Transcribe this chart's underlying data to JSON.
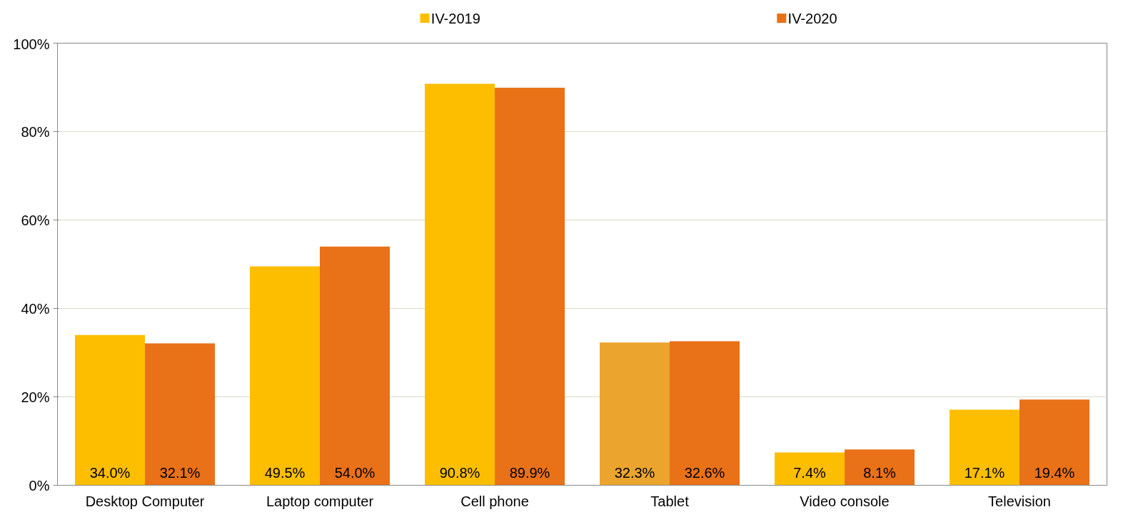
{
  "chart_data": {
    "type": "bar",
    "categories": [
      "Desktop Computer",
      "Laptop computer",
      "Cell phone",
      "Tablet",
      "Video console",
      "Television"
    ],
    "series": [
      {
        "name": "IV-2019",
        "color": "#fdbe00",
        "colors": [
          "#fdbe00",
          "#fdbe00",
          "#fdbe00",
          "#eba52e",
          "#fdbe00",
          "#fdbe00"
        ],
        "values": [
          34.0,
          49.5,
          90.8,
          32.3,
          7.4,
          17.1
        ],
        "value_labels": [
          "34.0%",
          "49.5%",
          "90.8%",
          "32.3%",
          "7.4%",
          "17.1%"
        ]
      },
      {
        "name": "IV-2020",
        "color": "#e97118",
        "values": [
          32.1,
          54.0,
          89.9,
          32.6,
          8.1,
          19.4
        ],
        "value_labels": [
          "32.1%",
          "54.0%",
          "89.9%",
          "32.6%",
          "8.1%",
          "19.4%"
        ]
      }
    ],
    "ylim": [
      0,
      100
    ],
    "yticks": [
      {
        "value": 0,
        "label": "0%"
      },
      {
        "value": 20,
        "label": "20%"
      },
      {
        "value": 40,
        "label": "40%"
      },
      {
        "value": 60,
        "label": "60%"
      },
      {
        "value": 80,
        "label": "80%"
      },
      {
        "value": 100,
        "label": "100%"
      }
    ],
    "grid": "y",
    "legend": "top"
  }
}
